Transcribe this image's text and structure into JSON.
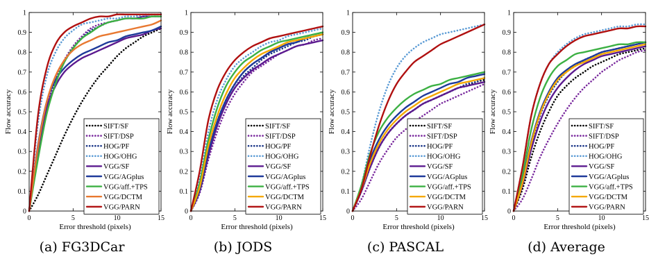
{
  "figure": {
    "panel_captions": [
      "(a) FG3DCar",
      "(b) JODS",
      "(c) PASCAL",
      "(d) Average"
    ]
  },
  "styles": {
    "SIFT/SF": {
      "color": "#000000",
      "dash": "dot"
    },
    "SIFT/DSP": {
      "color": "#7a2a9e",
      "dash": "dot"
    },
    "HOG/PF": {
      "color": "#1f3a8a",
      "dash": "dot"
    },
    "HOG/OHG": {
      "color": "#5b9bd5",
      "dash": "dot"
    },
    "VGG/SF": {
      "color": "#5b1a8f",
      "dash": "solid"
    },
    "VGG/AGplus": {
      "color": "#1f3a9a",
      "dash": "solid"
    },
    "VGG/aff.+TPS": {
      "color": "#3cb043",
      "dash": "solid"
    },
    "VGG/DCTM": {
      "color": "#f5a800",
      "dash": "solid"
    },
    "VGG/DCTM_fg": {
      "color": "#e87830",
      "dash": "solid"
    },
    "VGG/PARN": {
      "color": "#b01010",
      "dash": "solid"
    }
  },
  "chart_data": [
    {
      "type": "line",
      "caption": "(a) FG3DCar",
      "xlabel": "Error threshold (pixels)",
      "ylabel": "Flow accuracy",
      "xlim": [
        0,
        15
      ],
      "ylim": [
        0,
        1
      ],
      "xticks": [
        0,
        5,
        10,
        15
      ],
      "yticks": [
        0,
        0.1,
        0.2,
        0.3,
        0.4,
        0.5,
        0.6,
        0.7,
        0.8,
        0.9,
        1
      ],
      "ytick_labels": [
        "0",
        "0.1",
        "0.2",
        "0.3",
        "0.4",
        "0.5",
        "0.6",
        "0.7",
        "0.8",
        "0.9",
        "1"
      ],
      "legend_position": "bottom-right",
      "x": [
        0,
        1,
        2,
        3,
        4,
        5,
        6,
        7,
        8,
        9,
        10,
        11,
        12,
        13,
        14,
        15
      ],
      "series": [
        {
          "name": "SIFT/SF",
          "style": "SIFT/SF",
          "values": [
            0,
            0.08,
            0.18,
            0.28,
            0.38,
            0.47,
            0.55,
            0.62,
            0.68,
            0.73,
            0.78,
            0.82,
            0.85,
            0.88,
            0.9,
            0.92
          ]
        },
        {
          "name": "SIFT/DSP",
          "style": "SIFT/DSP",
          "values": [
            0,
            0.3,
            0.52,
            0.66,
            0.76,
            0.83,
            0.88,
            0.92,
            0.94,
            0.95,
            0.96,
            0.97,
            0.97,
            0.98,
            0.98,
            0.98
          ]
        },
        {
          "name": "HOG/PF",
          "style": "HOG/PF",
          "values": [
            0,
            0.28,
            0.5,
            0.65,
            0.75,
            0.82,
            0.87,
            0.91,
            0.93,
            0.95,
            0.96,
            0.97,
            0.97,
            0.98,
            0.98,
            0.98
          ]
        },
        {
          "name": "HOG/OHG",
          "style": "HOG/OHG",
          "values": [
            0,
            0.44,
            0.68,
            0.8,
            0.87,
            0.91,
            0.94,
            0.95,
            0.96,
            0.97,
            0.97,
            0.98,
            0.98,
            0.99,
            0.99,
            0.99
          ]
        },
        {
          "name": "VGG/SF",
          "style": "VGG/SF",
          "values": [
            0,
            0.3,
            0.52,
            0.63,
            0.7,
            0.74,
            0.77,
            0.79,
            0.81,
            0.83,
            0.85,
            0.87,
            0.88,
            0.89,
            0.91,
            0.92
          ]
        },
        {
          "name": "VGG/AGplus",
          "style": "VGG/AGplus",
          "values": [
            0,
            0.33,
            0.55,
            0.66,
            0.72,
            0.76,
            0.79,
            0.81,
            0.83,
            0.85,
            0.86,
            0.88,
            0.89,
            0.9,
            0.91,
            0.93
          ]
        },
        {
          "name": "VGG/aff.+TPS",
          "style": "VGG/aff.+TPS",
          "values": [
            0,
            0.26,
            0.49,
            0.64,
            0.75,
            0.82,
            0.87,
            0.9,
            0.93,
            0.95,
            0.96,
            0.97,
            0.97,
            0.97,
            0.98,
            0.98
          ]
        },
        {
          "name": "VGG/DCTM",
          "style": "VGG/DCTM_fg",
          "values": [
            0,
            0.32,
            0.55,
            0.68,
            0.76,
            0.81,
            0.84,
            0.86,
            0.88,
            0.89,
            0.9,
            0.91,
            0.92,
            0.93,
            0.94,
            0.96
          ]
        },
        {
          "name": "VGG/PARN",
          "style": "VGG/PARN",
          "values": [
            0,
            0.48,
            0.72,
            0.84,
            0.9,
            0.93,
            0.95,
            0.97,
            0.98,
            0.98,
            0.99,
            0.99,
            0.99,
            0.99,
            0.99,
            0.99
          ]
        }
      ]
    },
    {
      "type": "line",
      "caption": "(b) JODS",
      "xlabel": "Error threshold (pixels)",
      "ylabel": "Flow accuracy",
      "xlim": [
        0,
        15
      ],
      "ylim": [
        0,
        1
      ],
      "xticks": [
        0,
        5,
        10,
        15
      ],
      "yticks": [
        0,
        0.1,
        0.2,
        0.3,
        0.4,
        0.5,
        0.6,
        0.7,
        0.8,
        0.9,
        1
      ],
      "ytick_labels": [
        "0",
        "0.1",
        "0.2",
        "0.3",
        "0.4",
        "0.5",
        "0.6",
        "0.7",
        "0.8",
        "0.9",
        "1"
      ],
      "legend_position": "bottom-right",
      "x": [
        0,
        1,
        2,
        3,
        4,
        5,
        6,
        7,
        8,
        9,
        10,
        11,
        12,
        13,
        14,
        15
      ],
      "series": [
        {
          "name": "SIFT/SF",
          "style": "SIFT/SF",
          "values": [
            0,
            0.11,
            0.3,
            0.45,
            0.56,
            0.64,
            0.7,
            0.74,
            0.77,
            0.8,
            0.82,
            0.84,
            0.85,
            0.87,
            0.88,
            0.89
          ]
        },
        {
          "name": "SIFT/DSP",
          "style": "SIFT/DSP",
          "values": [
            0,
            0.09,
            0.26,
            0.4,
            0.51,
            0.59,
            0.65,
            0.7,
            0.73,
            0.76,
            0.79,
            0.81,
            0.83,
            0.84,
            0.86,
            0.87
          ]
        },
        {
          "name": "HOG/PF",
          "style": "HOG/PF",
          "values": [
            0,
            0.1,
            0.28,
            0.43,
            0.54,
            0.62,
            0.68,
            0.72,
            0.76,
            0.79,
            0.81,
            0.83,
            0.85,
            0.86,
            0.88,
            0.89
          ]
        },
        {
          "name": "HOG/OHG",
          "style": "HOG/OHG",
          "values": [
            0,
            0.16,
            0.4,
            0.56,
            0.66,
            0.73,
            0.77,
            0.8,
            0.83,
            0.85,
            0.86,
            0.88,
            0.89,
            0.9,
            0.91,
            0.92
          ]
        },
        {
          "name": "VGG/SF",
          "style": "VGG/SF",
          "values": [
            0,
            0.1,
            0.28,
            0.43,
            0.54,
            0.62,
            0.67,
            0.71,
            0.74,
            0.77,
            0.79,
            0.81,
            0.83,
            0.84,
            0.85,
            0.86
          ]
        },
        {
          "name": "VGG/AGplus",
          "style": "VGG/AGplus",
          "values": [
            0,
            0.11,
            0.3,
            0.45,
            0.56,
            0.64,
            0.7,
            0.74,
            0.77,
            0.8,
            0.82,
            0.84,
            0.85,
            0.87,
            0.88,
            0.89
          ]
        },
        {
          "name": "VGG/aff.+TPS",
          "style": "VGG/aff.+TPS",
          "values": [
            0,
            0.14,
            0.36,
            0.52,
            0.63,
            0.7,
            0.75,
            0.78,
            0.81,
            0.83,
            0.85,
            0.86,
            0.87,
            0.88,
            0.89,
            0.9
          ]
        },
        {
          "name": "VGG/DCTM",
          "style": "VGG/DCTM",
          "values": [
            0,
            0.12,
            0.33,
            0.48,
            0.59,
            0.67,
            0.72,
            0.76,
            0.79,
            0.81,
            0.83,
            0.85,
            0.86,
            0.87,
            0.88,
            0.89
          ]
        },
        {
          "name": "VGG/PARN",
          "style": "VGG/PARN",
          "values": [
            0,
            0.2,
            0.46,
            0.61,
            0.7,
            0.76,
            0.8,
            0.83,
            0.85,
            0.87,
            0.88,
            0.89,
            0.9,
            0.91,
            0.92,
            0.93
          ]
        }
      ]
    },
    {
      "type": "line",
      "caption": "(c) PASCAL",
      "xlabel": "Error threshold (pixels)",
      "ylabel": "Flow accuracy",
      "xlim": [
        0,
        15
      ],
      "ylim": [
        0,
        1
      ],
      "xticks": [
        0,
        5,
        10,
        15
      ],
      "yticks": [
        0,
        0.1,
        0.2,
        0.3,
        0.4,
        0.5,
        0.6,
        0.7,
        0.8,
        0.9,
        1
      ],
      "ytick_labels": [
        "0",
        "0.1",
        "0.2",
        "0.3",
        "0.4",
        "0.5",
        "0.6",
        "0.7",
        "0.8",
        "0.9",
        "1"
      ],
      "legend_position": "bottom-right",
      "x": [
        0,
        1,
        2,
        3,
        4,
        5,
        6,
        7,
        8,
        9,
        10,
        11,
        12,
        13,
        14,
        15
      ],
      "series": [
        {
          "name": "SIFT/SF",
          "style": "SIFT/SF",
          "values": [
            0,
            0.1,
            0.22,
            0.32,
            0.39,
            0.44,
            0.48,
            0.51,
            0.54,
            0.56,
            0.58,
            0.6,
            0.62,
            0.63,
            0.65,
            0.66
          ]
        },
        {
          "name": "SIFT/DSP",
          "style": "SIFT/DSP",
          "values": [
            0,
            0.06,
            0.15,
            0.24,
            0.31,
            0.37,
            0.41,
            0.45,
            0.48,
            0.51,
            0.54,
            0.56,
            0.58,
            0.6,
            0.62,
            0.64
          ]
        },
        {
          "name": "HOG/PF",
          "style": "HOG/PF",
          "values": [
            0,
            0.1,
            0.22,
            0.32,
            0.39,
            0.44,
            0.48,
            0.51,
            0.54,
            0.56,
            0.58,
            0.6,
            0.62,
            0.64,
            0.65,
            0.67
          ]
        },
        {
          "name": "HOG/OHG",
          "style": "HOG/OHG",
          "values": [
            0,
            0.13,
            0.33,
            0.5,
            0.63,
            0.72,
            0.78,
            0.82,
            0.85,
            0.87,
            0.89,
            0.9,
            0.91,
            0.92,
            0.93,
            0.94
          ]
        },
        {
          "name": "VGG/SF",
          "style": "VGG/SF",
          "values": [
            0,
            0.1,
            0.22,
            0.32,
            0.39,
            0.44,
            0.48,
            0.51,
            0.54,
            0.56,
            0.58,
            0.6,
            0.62,
            0.63,
            0.64,
            0.65
          ]
        },
        {
          "name": "VGG/AGplus",
          "style": "VGG/AGplus",
          "values": [
            0,
            0.12,
            0.26,
            0.36,
            0.43,
            0.48,
            0.52,
            0.55,
            0.58,
            0.6,
            0.62,
            0.64,
            0.65,
            0.67,
            0.68,
            0.69
          ]
        },
        {
          "name": "VGG/aff.+TPS",
          "style": "VGG/aff.+TPS",
          "values": [
            0,
            0.13,
            0.29,
            0.4,
            0.47,
            0.52,
            0.56,
            0.59,
            0.61,
            0.63,
            0.64,
            0.66,
            0.67,
            0.68,
            0.69,
            0.7
          ]
        },
        {
          "name": "VGG/DCTM",
          "style": "VGG/DCTM",
          "values": [
            0,
            0.11,
            0.24,
            0.34,
            0.41,
            0.46,
            0.5,
            0.53,
            0.56,
            0.58,
            0.6,
            0.62,
            0.64,
            0.65,
            0.66,
            0.67
          ]
        },
        {
          "name": "VGG/PARN",
          "style": "VGG/PARN",
          "values": [
            0,
            0.11,
            0.28,
            0.43,
            0.55,
            0.64,
            0.7,
            0.75,
            0.78,
            0.81,
            0.84,
            0.86,
            0.88,
            0.9,
            0.92,
            0.94
          ]
        }
      ]
    },
    {
      "type": "line",
      "caption": "(d) Average",
      "xlabel": "Error threshold (pixels)",
      "ylabel": "Flow accuracy",
      "xlim": [
        0,
        15
      ],
      "ylim": [
        0,
        1
      ],
      "xticks": [
        0,
        5,
        10,
        15
      ],
      "yticks": [
        0,
        0.1,
        0.2,
        0.3,
        0.4,
        0.5,
        0.6,
        0.7,
        0.8,
        0.9,
        1
      ],
      "ytick_labels": [
        "0",
        "0.1",
        "0.2",
        "0.3",
        "0.4",
        "0.5",
        "0.6",
        "0.7",
        "0.8",
        "0.9",
        "1"
      ],
      "legend_position": "bottom-right",
      "x": [
        0,
        1,
        2,
        3,
        4,
        5,
        6,
        7,
        8,
        9,
        10,
        11,
        12,
        13,
        14,
        15
      ],
      "series": [
        {
          "name": "SIFT/SF",
          "style": "SIFT/SF",
          "values": [
            0,
            0.11,
            0.27,
            0.4,
            0.5,
            0.58,
            0.63,
            0.67,
            0.7,
            0.73,
            0.75,
            0.77,
            0.79,
            0.8,
            0.81,
            0.82
          ]
        },
        {
          "name": "SIFT/DSP",
          "style": "SIFT/DSP",
          "values": [
            0,
            0.06,
            0.16,
            0.27,
            0.36,
            0.44,
            0.51,
            0.57,
            0.62,
            0.66,
            0.7,
            0.73,
            0.76,
            0.78,
            0.8,
            0.81
          ]
        },
        {
          "name": "HOG/PF",
          "style": "HOG/PF",
          "values": [
            0,
            0.14,
            0.33,
            0.48,
            0.58,
            0.65,
            0.7,
            0.73,
            0.76,
            0.78,
            0.8,
            0.81,
            0.82,
            0.83,
            0.84,
            0.85
          ]
        },
        {
          "name": "HOG/OHG",
          "style": "HOG/OHG",
          "values": [
            0,
            0.22,
            0.48,
            0.64,
            0.74,
            0.8,
            0.84,
            0.87,
            0.89,
            0.9,
            0.91,
            0.92,
            0.93,
            0.93,
            0.94,
            0.94
          ]
        },
        {
          "name": "VGG/SF",
          "style": "VGG/SF",
          "values": [
            0,
            0.13,
            0.31,
            0.45,
            0.55,
            0.62,
            0.67,
            0.71,
            0.74,
            0.76,
            0.78,
            0.79,
            0.8,
            0.81,
            0.82,
            0.83
          ]
        },
        {
          "name": "VGG/AGplus",
          "style": "VGG/AGplus",
          "values": [
            0,
            0.15,
            0.35,
            0.5,
            0.6,
            0.67,
            0.71,
            0.74,
            0.76,
            0.78,
            0.8,
            0.81,
            0.82,
            0.83,
            0.84,
            0.85
          ]
        },
        {
          "name": "VGG/aff.+TPS",
          "style": "VGG/aff.+TPS",
          "values": [
            0,
            0.18,
            0.41,
            0.57,
            0.67,
            0.73,
            0.76,
            0.79,
            0.8,
            0.81,
            0.82,
            0.83,
            0.84,
            0.84,
            0.85,
            0.85
          ]
        },
        {
          "name": "VGG/DCTM",
          "style": "VGG/DCTM",
          "values": [
            0,
            0.14,
            0.34,
            0.49,
            0.59,
            0.66,
            0.7,
            0.73,
            0.75,
            0.77,
            0.79,
            0.8,
            0.81,
            0.82,
            0.83,
            0.84
          ]
        },
        {
          "name": "VGG/PARN",
          "style": "VGG/PARN",
          "values": [
            0,
            0.22,
            0.48,
            0.64,
            0.74,
            0.79,
            0.83,
            0.86,
            0.88,
            0.89,
            0.9,
            0.91,
            0.92,
            0.92,
            0.93,
            0.93
          ]
        }
      ]
    }
  ]
}
